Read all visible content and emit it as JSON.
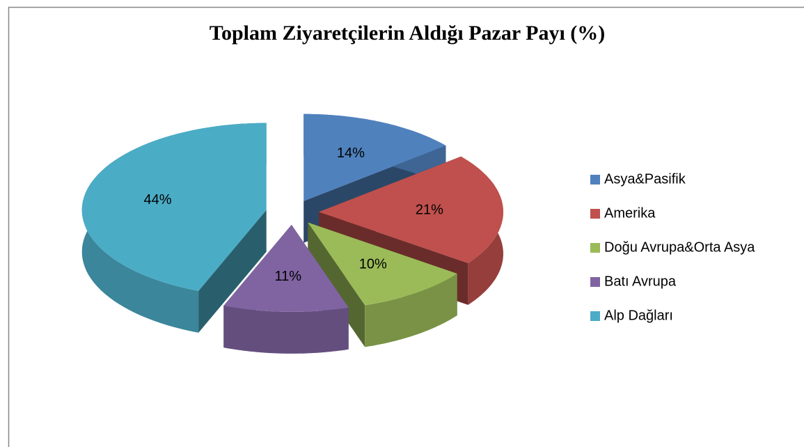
{
  "chart_data": {
    "type": "pie",
    "title": "Toplam Ziyaretçilerin Aldığı Pazar Payı (%)",
    "categories": [
      "Asya&Pasifik",
      "Amerika",
      "Doğu Avrupa&Orta Asya",
      "Batı Avrupa",
      "Alp Dağları"
    ],
    "values": [
      14,
      21,
      10,
      11,
      44
    ],
    "value_labels": [
      "14%",
      "21%",
      "10%",
      "11%",
      "44%"
    ],
    "colors": [
      "#4f81bd",
      "#c0504d",
      "#9bbb59",
      "#8064a2",
      "#4bacc6"
    ],
    "legend": "right"
  }
}
